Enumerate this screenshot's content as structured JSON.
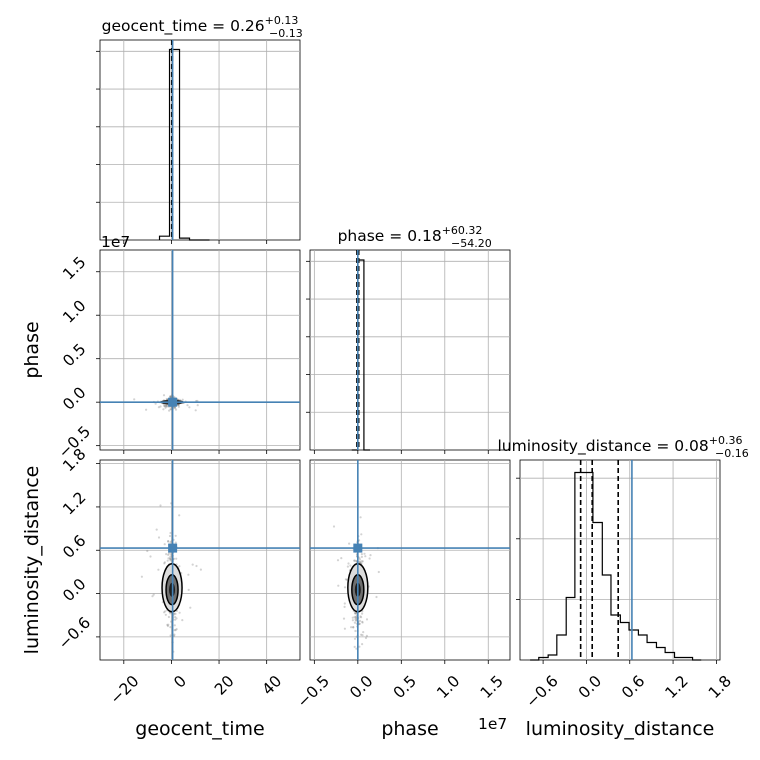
{
  "chart_data": {
    "type": "corner",
    "parameters": [
      "geocent_time",
      "phase",
      "luminosity_distance"
    ],
    "titles": {
      "geocent_time": {
        "name": "geocent_time",
        "median": "0.26",
        "plus": "+0.13",
        "minus": "−0.13"
      },
      "phase": {
        "name": "phase",
        "median": "0.18",
        "plus": "+60.32",
        "minus": "−54.20"
      },
      "luminosity_distance": {
        "name": "luminosity_distance",
        "median": "0.08",
        "plus": "+0.36",
        "minus": "−0.16"
      }
    },
    "axis_labels": {
      "x": [
        "geocent_time",
        "phase",
        "luminosity_distance"
      ],
      "y": [
        "phase",
        "luminosity_distance"
      ]
    },
    "offset_labels": {
      "phase_y": "1e7",
      "phase_x": "1e7"
    },
    "ranges": {
      "geocent_time": [
        -30,
        54
      ],
      "phase": [
        -0.55,
        1.75
      ],
      "luminosity_distance": [
        -0.92,
        1.85
      ]
    },
    "ticks": {
      "geocent_time": {
        "values": [
          -20,
          0,
          20,
          40
        ],
        "labels": [
          "−20",
          "0",
          "20",
          "40"
        ]
      },
      "phase": {
        "values": [
          -0.5,
          0.0,
          0.5,
          1.0,
          1.5
        ],
        "labels": [
          "−0.5",
          "0.0",
          "0.5",
          "1.0",
          "1.5"
        ]
      },
      "luminosity_distance": {
        "values": [
          -0.6,
          0.0,
          0.6,
          1.2,
          1.8
        ],
        "labels": [
          "−0.6",
          "0.0",
          "0.6",
          "1.2",
          "1.8"
        ]
      },
      "luminosity_distance_y": {
        "values": [
          -0.6,
          0.0,
          0.6,
          1.2,
          1.8
        ],
        "labels": [
          "−0.6",
          "0.0",
          "0.6",
          "1.2",
          "1.8"
        ]
      }
    },
    "truths": {
      "geocent_time": 0.5,
      "phase": 0.0,
      "luminosity_distance": 0.63
    },
    "quantile_lines": {
      "geocent_time": [
        0.13,
        0.26,
        0.39
      ],
      "phase": [
        -0.01,
        0.0,
        0.01
      ],
      "luminosity_distance": [
        -0.08,
        0.08,
        0.44
      ]
    },
    "histograms": {
      "geocent_time": {
        "bin_edges": [
          -5,
          -0.8,
          3.4,
          7.6,
          11.8,
          16
        ],
        "counts": [
          2,
          100,
          1,
          0,
          0
        ]
      },
      "phase": {
        "bin_edges": [
          -0.07,
          0.0,
          0.07,
          0.14
        ],
        "counts": [
          0,
          95,
          0
        ]
      },
      "luminosity_distance": {
        "bin_edges": [
          -0.78,
          -0.66,
          -0.53,
          -0.41,
          -0.28,
          -0.16,
          -0.03,
          0.09,
          0.22,
          0.34,
          0.47,
          0.59,
          0.72,
          0.84,
          0.97,
          1.09,
          1.22,
          1.34,
          1.47,
          1.59
        ],
        "counts": [
          0,
          1,
          2,
          10,
          25,
          75,
          75,
          55,
          34,
          18,
          15,
          12,
          10,
          7,
          5,
          3,
          1,
          1,
          0
        ]
      }
    },
    "ylim_hist": {
      "geocent_time": [
        0,
        105
      ],
      "phase": [
        0,
        100
      ],
      "luminosity_distance": [
        0,
        80
      ]
    },
    "hist_ytick_count": {
      "geocent_time": 5,
      "phase": 5,
      "luminosity_distance": 3
    },
    "colors": {
      "truth": "#4682b4",
      "hist": "#000000",
      "points": "#808080",
      "grid": "#b0b0b0"
    }
  }
}
